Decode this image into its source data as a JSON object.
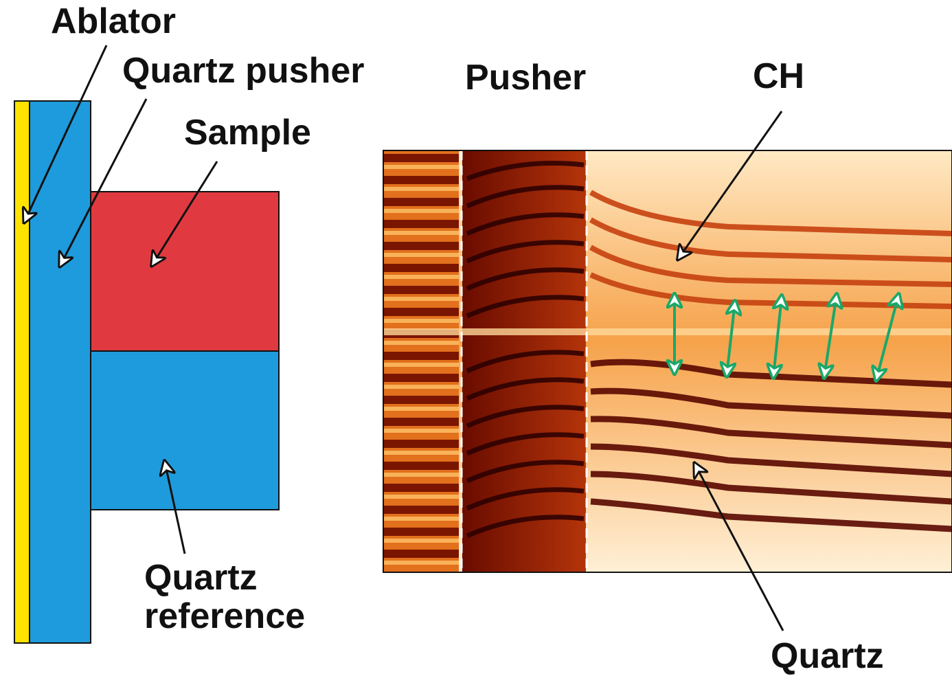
{
  "labels": {
    "ablator": "Ablator",
    "quartz_pusher": "Quartz pusher",
    "sample": "Sample",
    "quartz_reference_line1": "Quartz",
    "quartz_reference_line2": "reference",
    "pusher": "Pusher",
    "ch": "CH",
    "quartz": "Quartz"
  },
  "colors": {
    "ablator": "#ffe200",
    "quartz": "#1e9bdc",
    "sample": "#e03a40",
    "arrow_black": "#111111",
    "arrow_green": "#1aa86a",
    "fringe_dark": "#7a0a00",
    "fringe_light": "#ffe6b0"
  }
}
